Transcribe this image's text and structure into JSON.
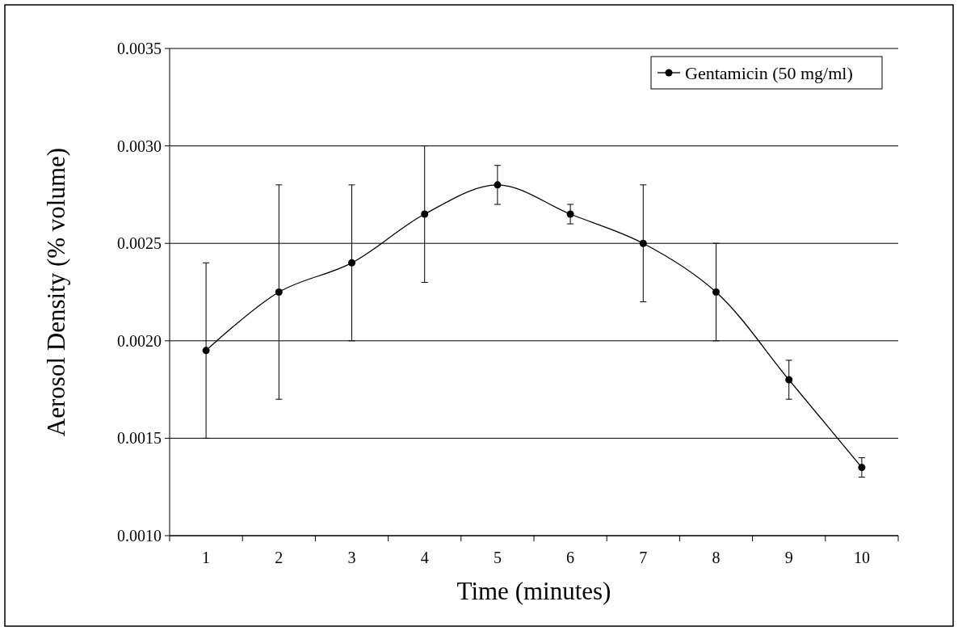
{
  "chart_data": {
    "type": "line",
    "xlabel": "Time (minutes)",
    "ylabel": "Aerosol Density (% volume)",
    "categories": [
      "1",
      "2",
      "3",
      "4",
      "5",
      "6",
      "7",
      "8",
      "9",
      "10"
    ],
    "series": [
      {
        "name": "Gentamicin (50 mg/ml)",
        "color": "#000000",
        "values": [
          0.00195,
          0.00225,
          0.0024,
          0.00265,
          0.0028,
          0.00265,
          0.0025,
          0.00225,
          0.0018,
          0.00135
        ],
        "errors": [
          0.00045,
          0.00055,
          0.0004,
          0.00035,
          0.0001,
          5e-05,
          0.0003,
          0.00025,
          0.0001,
          5e-05
        ]
      }
    ],
    "ylim": [
      0.001,
      0.0035
    ],
    "yticks": [
      {
        "value": 0.001,
        "label": "0.0010"
      },
      {
        "value": 0.0015,
        "label": "0.0015"
      },
      {
        "value": 0.002,
        "label": "0.0020"
      },
      {
        "value": 0.0025,
        "label": "0.0025"
      },
      {
        "value": 0.003,
        "label": "0.0030"
      },
      {
        "value": 0.0035,
        "label": "0.0035"
      }
    ],
    "grid": "y",
    "legend": "top right",
    "marker": "circle",
    "line_style": "solid"
  }
}
